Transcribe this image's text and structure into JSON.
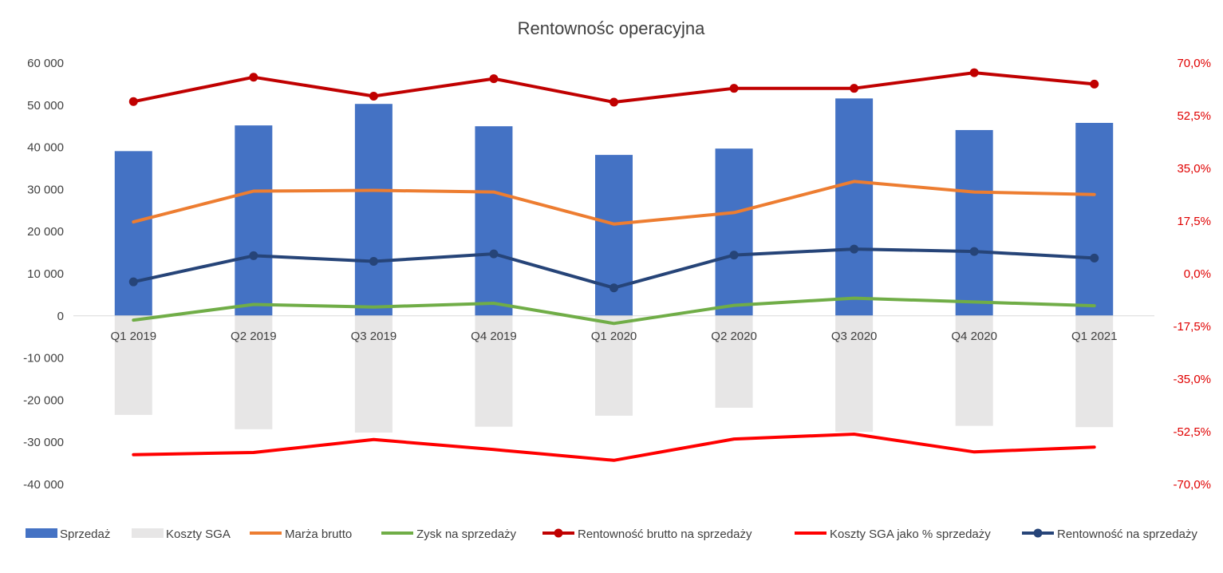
{
  "chart_data": {
    "type": "bar",
    "title": "Rentownośc operacyjna",
    "categories": [
      "Q1 2019",
      "Q2 2019",
      "Q3 2019",
      "Q4 2019",
      "Q1 2020",
      "Q2 2020",
      "Q3 2020",
      "Q4 2020",
      "Q1 2021"
    ],
    "y_left": {
      "min": -40000,
      "max": 60000,
      "step": 10000,
      "ticks": [
        "60 000",
        "50 000",
        "40 000",
        "30 000",
        "20 000",
        "10 000",
        "0",
        "-10 000",
        "-20 000",
        "-30 000",
        "-40 000"
      ]
    },
    "y_right": {
      "min": -70,
      "max": 70,
      "step": 17.5,
      "ticks": [
        "70,0%",
        "52,5%",
        "35,0%",
        "17,5%",
        "0,0%",
        "-17,5%",
        "-35,0%",
        "-52,5%",
        "-70,0%"
      ]
    },
    "series": [
      {
        "name": "Sprzedaż",
        "kind": "bar",
        "axis": "left",
        "color": "#4472C4",
        "values": [
          39100,
          45200,
          50300,
          45000,
          38200,
          39700,
          51600,
          44100,
          45800
        ]
      },
      {
        "name": "Koszty SGA",
        "kind": "bar",
        "axis": "left",
        "color": "#E7E6E6",
        "values": [
          -23500,
          -26900,
          -27700,
          -26300,
          -23700,
          -21800,
          -27500,
          -26100,
          -26400
        ]
      },
      {
        "name": "Marża brutto",
        "kind": "line",
        "axis": "left",
        "color": "#ED7D31",
        "marker": false,
        "values": [
          22300,
          29600,
          29800,
          29400,
          21800,
          24500,
          31900,
          29400,
          28800
        ]
      },
      {
        "name": "Zysk na sprzedaży",
        "kind": "line",
        "axis": "left",
        "color": "#70AD47",
        "marker": false,
        "values": [
          -1000,
          2700,
          2100,
          3000,
          -1800,
          2500,
          4200,
          3300,
          2400
        ]
      },
      {
        "name": "Rentowność brutto na sprzedaży",
        "kind": "line",
        "axis": "right",
        "color": "#C00000",
        "marker": true,
        "values": [
          57.2,
          65.3,
          59.0,
          64.8,
          57.0,
          61.6,
          61.6,
          66.8,
          63.0
        ]
      },
      {
        "name": "Koszty SGA jako % sprzedaży",
        "kind": "line",
        "axis": "right",
        "color": "#FF0000",
        "marker": false,
        "values": [
          -60.1,
          -59.4,
          -55.1,
          -58.4,
          -62.0,
          -54.9,
          -53.3,
          -59.2,
          -57.6
        ]
      },
      {
        "name": "Rentowność na sprzedaży",
        "kind": "line",
        "axis": "right",
        "color": "#264478",
        "marker": true,
        "values": [
          -2.7,
          6.0,
          4.1,
          6.6,
          -4.7,
          6.2,
          8.2,
          7.4,
          5.2
        ]
      }
    ],
    "legend_position": "bottom",
    "grid": false
  }
}
